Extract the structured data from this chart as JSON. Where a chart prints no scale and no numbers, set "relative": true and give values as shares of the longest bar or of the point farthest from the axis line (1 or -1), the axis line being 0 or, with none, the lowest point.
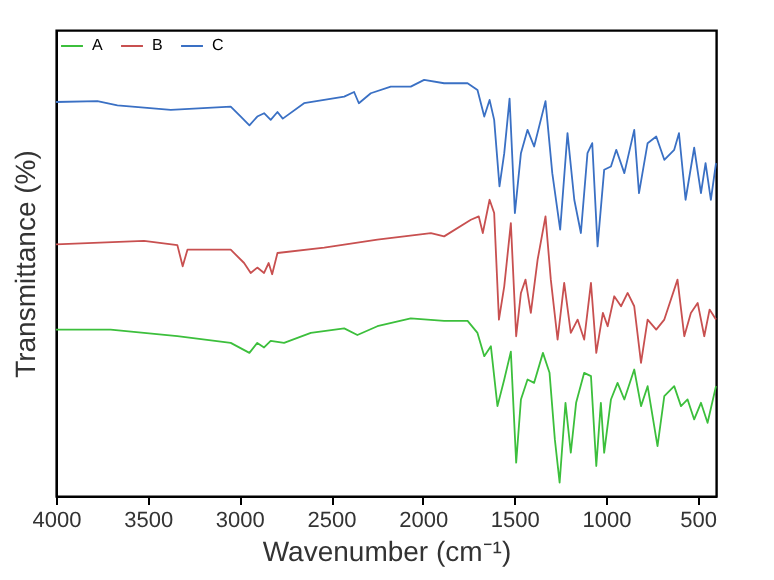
{
  "chart_data": {
    "type": "line",
    "xlabel": "Wavenumber (cm⁻¹)",
    "ylabel": "Transmittance (%)",
    "relative": true,
    "xlim": [
      4000,
      400
    ],
    "xticks": [
      4000,
      3500,
      3000,
      2500,
      2000,
      1500,
      1000,
      500
    ],
    "grid": false,
    "legend": "top left",
    "marker": "none",
    "line_style": "solid",
    "series": [
      {
        "name": "A",
        "color": "#3cbf3c",
        "x": [
          4000,
          3702,
          3338,
          3047,
          2945,
          2902,
          2865,
          2829,
          2756,
          2610,
          2428,
          2356,
          2247,
          2065,
          1883,
          1755,
          1701,
          1664,
          1628,
          1592,
          1555,
          1519,
          1490,
          1464,
          1428,
          1392,
          1344,
          1308,
          1279,
          1253,
          1221,
          1192,
          1163,
          1119,
          1082,
          1053,
          1028,
          1010,
          973,
          937,
          900,
          846,
          809,
          773,
          719,
          682,
          628,
          591,
          555,
          519,
          482,
          446,
          400
        ],
        "values": [
          0.4,
          0.4,
          0.384,
          0.368,
          0.344,
          0.368,
          0.357,
          0.373,
          0.368,
          0.392,
          0.403,
          0.387,
          0.408,
          0.427,
          0.421,
          0.421,
          0.392,
          0.336,
          0.36,
          0.216,
          0.28,
          0.347,
          0.08,
          0.232,
          0.28,
          0.272,
          0.344,
          0.296,
          0.136,
          0.032,
          0.224,
          0.104,
          0.224,
          0.296,
          0.288,
          0.072,
          0.224,
          0.104,
          0.232,
          0.272,
          0.232,
          0.304,
          0.216,
          0.264,
          0.12,
          0.24,
          0.264,
          0.216,
          0.232,
          0.184,
          0.224,
          0.176,
          0.264
        ]
      },
      {
        "name": "B",
        "color": "#c85050",
        "x": [
          4000,
          3520,
          3338,
          3309,
          3283,
          3047,
          2974,
          2938,
          2902,
          2865,
          2840,
          2821,
          2792,
          2537,
          2247,
          1955,
          1883,
          1737,
          1694,
          1672,
          1635,
          1610,
          1584,
          1555,
          1519,
          1490,
          1464,
          1439,
          1410,
          1373,
          1330,
          1301,
          1264,
          1228,
          1192,
          1155,
          1119,
          1082,
          1053,
          1017,
          991,
          955,
          918,
          882,
          846,
          809,
          773,
          726,
          682,
          610,
          573,
          537,
          500,
          464,
          435,
          400
        ],
        "values": [
          0.605,
          0.613,
          0.603,
          0.552,
          0.592,
          0.592,
          0.56,
          0.536,
          0.549,
          0.536,
          0.56,
          0.533,
          0.584,
          0.597,
          0.616,
          0.632,
          0.624,
          0.664,
          0.672,
          0.632,
          0.712,
          0.68,
          0.424,
          0.504,
          0.656,
          0.384,
          0.488,
          0.52,
          0.44,
          0.568,
          0.672,
          0.52,
          0.376,
          0.512,
          0.392,
          0.424,
          0.376,
          0.512,
          0.344,
          0.44,
          0.408,
          0.48,
          0.456,
          0.488,
          0.456,
          0.32,
          0.424,
          0.4,
          0.424,
          0.52,
          0.384,
          0.44,
          0.464,
          0.384,
          0.448,
          0.424
        ]
      },
      {
        "name": "C",
        "color": "#3a70c4",
        "x": [
          4000,
          3774,
          3665,
          3374,
          3047,
          2992,
          2945,
          2902,
          2865,
          2829,
          2792,
          2763,
          2647,
          2428,
          2374,
          2348,
          2283,
          2174,
          2065,
          1992,
          1883,
          1755,
          1701,
          1664,
          1635,
          1610,
          1581,
          1555,
          1526,
          1497,
          1464,
          1428,
          1392,
          1330,
          1293,
          1250,
          1210,
          1173,
          1137,
          1101,
          1075,
          1046,
          1010,
          973,
          944,
          900,
          846,
          820,
          773,
          726,
          682,
          628,
          602,
          566,
          519,
          482,
          457,
          428,
          400
        ],
        "values": [
          0.947,
          0.949,
          0.939,
          0.928,
          0.936,
          0.912,
          0.891,
          0.912,
          0.92,
          0.904,
          0.923,
          0.907,
          0.944,
          0.96,
          0.971,
          0.944,
          0.968,
          0.984,
          0.984,
          1,
          0.992,
          0.992,
          0.976,
          0.912,
          0.952,
          0.904,
          0.744,
          0.824,
          0.955,
          0.68,
          0.824,
          0.88,
          0.84,
          0.949,
          0.776,
          0.64,
          0.872,
          0.712,
          0.632,
          0.824,
          0.848,
          0.6,
          0.784,
          0.792,
          0.832,
          0.776,
          0.88,
          0.728,
          0.848,
          0.864,
          0.808,
          0.832,
          0.872,
          0.712,
          0.837,
          0.728,
          0.8,
          0.712,
          0.8
        ]
      }
    ]
  }
}
